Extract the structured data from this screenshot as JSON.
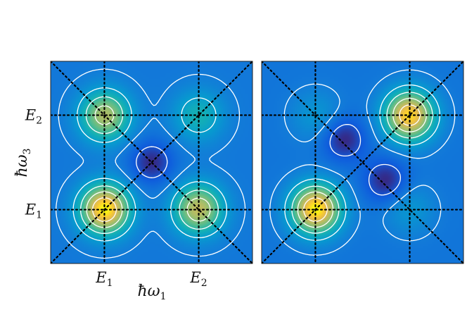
{
  "chart_data": [
    {
      "type": "heatmap",
      "panel": "left",
      "title": "",
      "xlabel": {
        "main": "ħω",
        "sub": "1"
      },
      "ylabel": {
        "main": "ħω",
        "sub": "3"
      },
      "xticks": [
        {
          "main": "E",
          "sub": "1",
          "value": 1
        },
        {
          "main": "E",
          "sub": "2",
          "value": 2
        }
      ],
      "yticks": [
        {
          "main": "E",
          "sub": "1",
          "value": 1
        },
        {
          "main": "E",
          "sub": "2",
          "value": 2
        }
      ],
      "xlim": [
        0.43,
        2.57
      ],
      "ylim": [
        0.43,
        2.57
      ],
      "colormap": "parula",
      "peaks": [
        {
          "x": 1,
          "y": 1,
          "amplitude": 1.0
        },
        {
          "x": 2,
          "y": 1,
          "amplitude": 0.75
        },
        {
          "x": 1,
          "y": 2,
          "amplitude": 0.7
        },
        {
          "x": 2,
          "y": 2,
          "amplitude": 0.35
        }
      ],
      "minima": [
        {
          "x": 1.5,
          "y": 1.5,
          "amplitude": -0.3
        }
      ],
      "contour_levels": [
        0.1,
        0.25,
        0.4,
        0.55,
        0.7,
        0.85
      ]
    },
    {
      "type": "heatmap",
      "panel": "right",
      "title": "",
      "xlim": [
        0.43,
        2.57
      ],
      "ylim": [
        0.43,
        2.57
      ],
      "colormap": "parula",
      "peaks": [
        {
          "x": 1,
          "y": 1,
          "amplitude": 1.0
        },
        {
          "x": 2,
          "y": 2,
          "amplitude": 0.95
        },
        {
          "x": 1,
          "y": 2,
          "amplitude": 0.18
        },
        {
          "x": 2,
          "y": 1,
          "amplitude": 0.18
        }
      ],
      "minima": [
        {
          "x": 1.3,
          "y": 1.75,
          "amplitude": -0.3
        },
        {
          "x": 1.75,
          "y": 1.3,
          "amplitude": -0.3
        }
      ],
      "contour_levels": [
        0.1,
        0.25,
        0.4,
        0.55,
        0.7,
        0.85
      ]
    }
  ],
  "colors": {
    "background_low": "#2a37a8",
    "mid": "#1c9fd6",
    "high": "#f8f20e",
    "contour": "#ffffff",
    "guide_lines": "#000000"
  }
}
